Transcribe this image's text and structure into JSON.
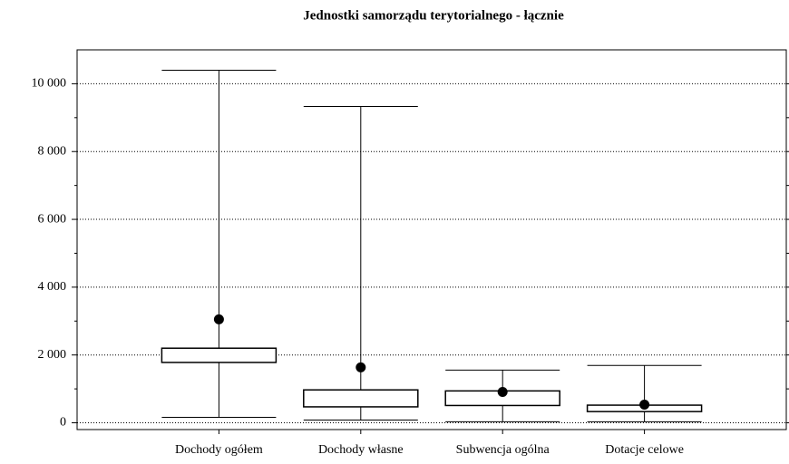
{
  "chart_data": {
    "type": "box",
    "title": "Jednostki samorządu terytorialnego - łącznie",
    "categories": [
      "Dochody ogółem",
      "Dochody własne",
      "Subwencja ogólna",
      "Dotacje celowe"
    ],
    "min": [
      160,
      80,
      30,
      30
    ],
    "q1": [
      1780,
      470,
      510,
      330
    ],
    "q3": [
      2200,
      970,
      940,
      520
    ],
    "max": [
      10400,
      9330,
      1555,
      1690
    ],
    "mean": [
      3050,
      1635,
      910,
      535
    ],
    "ylim": [
      -200,
      11000
    ],
    "yticks": [
      0,
      {
        "value": 2000,
        "label": "2 000"
      },
      {
        "value": 4000,
        "label": "4 000"
      },
      {
        "value": 6000,
        "label": "6 000"
      },
      {
        "value": 8000,
        "label": "8 000"
      },
      {
        "value": 10000,
        "label": "10 000"
      }
    ],
    "minor_yticks": [
      1000,
      3000,
      5000,
      7000,
      9000
    ],
    "grid": true,
    "color": "#000000"
  }
}
